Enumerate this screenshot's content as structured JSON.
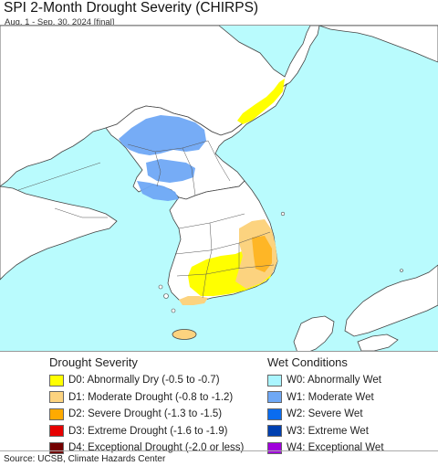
{
  "header": {
    "title": "SPI 2-Month Drought Severity (CHIRPS)",
    "subtitle": "Aug. 1 - Sep. 30, 2024 [final]"
  },
  "map": {
    "water_color": "#b9fbfd",
    "land_color": "#ffffff",
    "border_color": "#333333"
  },
  "legend_drought": {
    "title": "Drought Severity",
    "items": [
      {
        "label": "D0: Abnormally Dry (-0.5 to -0.7)",
        "color": "#ffff00"
      },
      {
        "label": "D1: Moderate Drought (-0.8 to -1.2)",
        "color": "#fcd37f"
      },
      {
        "label": "D2: Severe Drought (-1.3 to -1.5)",
        "color": "#ffaa00"
      },
      {
        "label": "D3: Extreme Drought (-1.6 to -1.9)",
        "color": "#e60000"
      },
      {
        "label": "D4: Exceptional Drought (-2.0 or less)",
        "color": "#730000"
      }
    ]
  },
  "legend_wet": {
    "title": "Wet Conditions",
    "items": [
      {
        "label": "W0: Abnormally Wet",
        "color": "#aaf5ff"
      },
      {
        "label": "W1: Moderate Wet",
        "color": "#6fa8f5"
      },
      {
        "label": "W2: Severe Wet",
        "color": "#0a6cf0"
      },
      {
        "label": "W3: Extreme Wet",
        "color": "#0040b0"
      },
      {
        "label": "W4: Exceptional Wet",
        "color": "#a000dc"
      }
    ]
  },
  "footer": {
    "source": "Source: UCSB, Climate Hazards Center"
  }
}
